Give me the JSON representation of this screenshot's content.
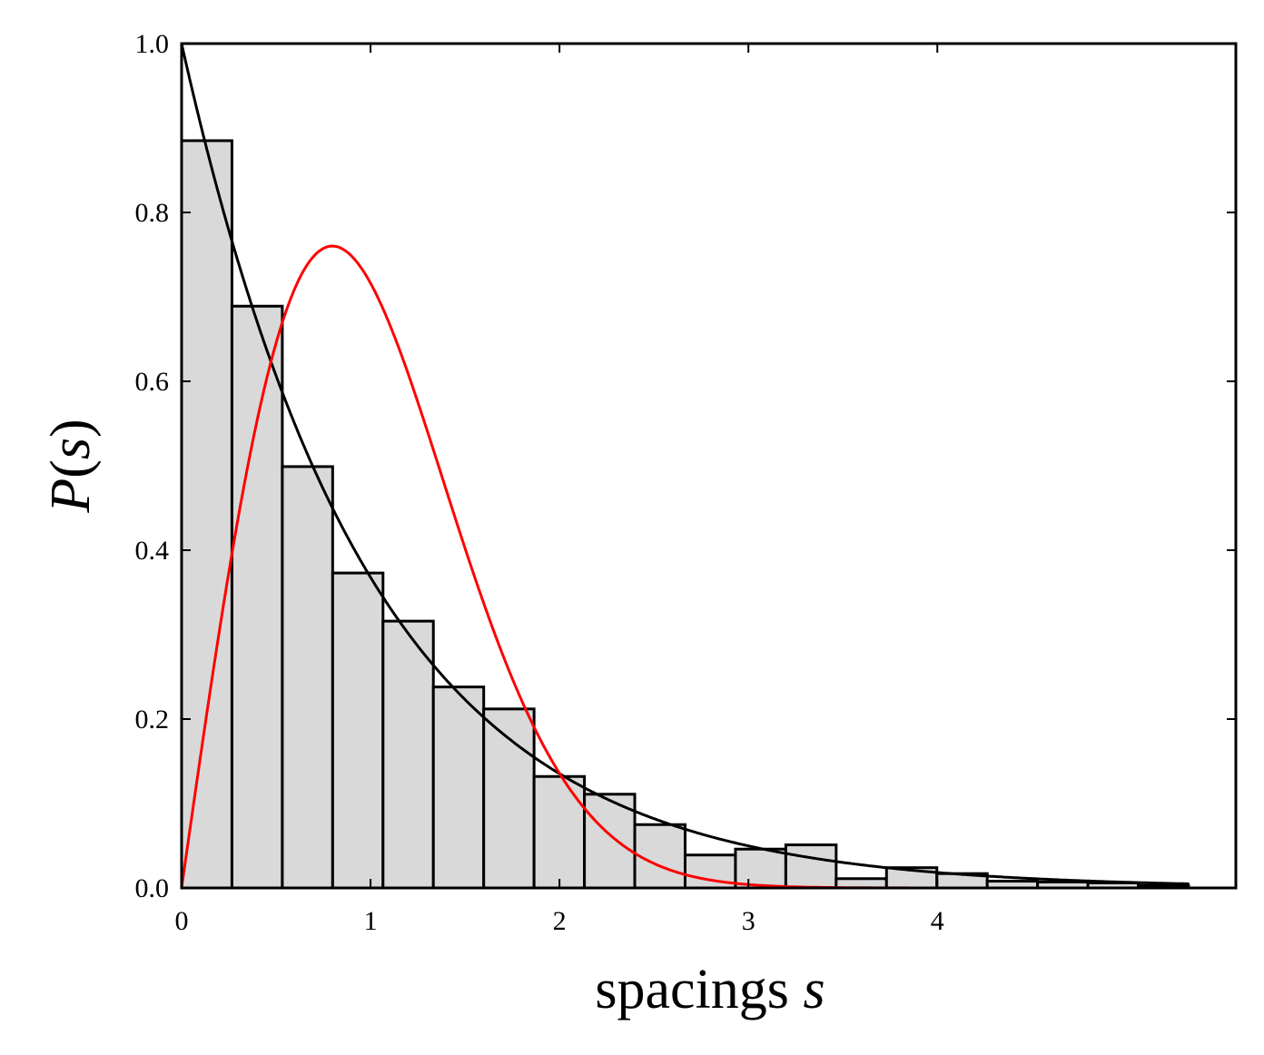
{
  "chart_data": {
    "type": "bar",
    "title": "",
    "xlabel_text": "spacings ",
    "xlabel_var": "s",
    "ylabel": "P(s)",
    "ylabel_parts": {
      "func": "P",
      "open": "(",
      "var": "s",
      "close": ")"
    },
    "xlim": [
      0,
      5.58
    ],
    "ylim": [
      0,
      1.0
    ],
    "xticks": [
      0,
      1,
      2,
      3,
      4
    ],
    "xtick_labels": [
      "0",
      "1",
      "2",
      "3",
      "4"
    ],
    "yticks": [
      0,
      0.2,
      0.4,
      0.6,
      0.8,
      1.0
    ],
    "ytick_labels": [
      "0.0",
      "0.2",
      "0.4",
      "0.6",
      "0.8",
      "1.0"
    ],
    "grid": false,
    "histogram": {
      "bin_start": 0,
      "bin_width": 0.2665,
      "values": [
        0.885,
        0.689,
        0.499,
        0.373,
        0.316,
        0.238,
        0.212,
        0.132,
        0.111,
        0.075,
        0.039,
        0.046,
        0.051,
        0.011,
        0.024,
        0.017,
        0.008,
        0.007,
        0.006,
        0.003
      ],
      "fill": "#d9d9d9",
      "edge": "#000000"
    },
    "curves": [
      {
        "formula": "exp(-s)",
        "color": "#000000"
      },
      {
        "formula": "(pi/2) s exp(-pi s^2/4)",
        "color": "#ff0000"
      }
    ]
  }
}
